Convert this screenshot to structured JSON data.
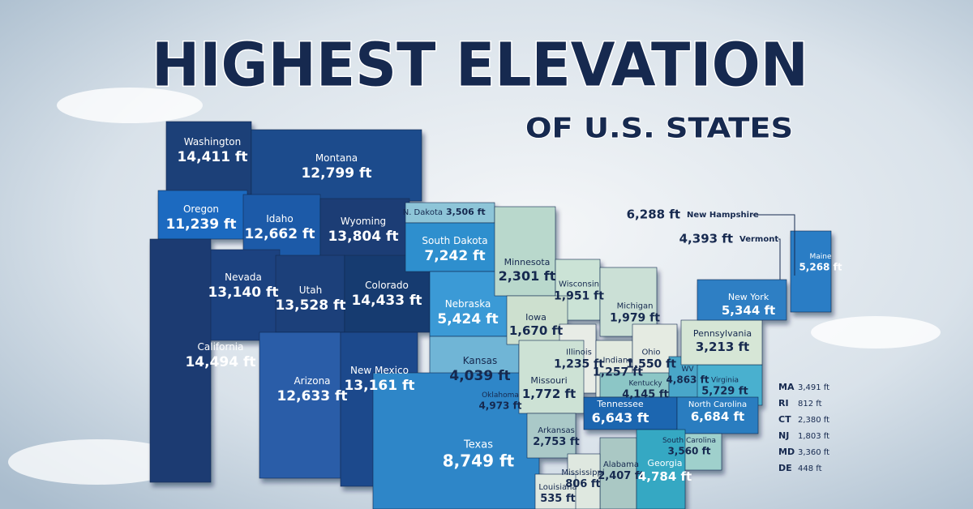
{
  "header": {
    "title": "HIGHEST ELEVATION",
    "subtitle": "OF U.S. STATES"
  },
  "states": [
    {
      "name": "Washington",
      "elevation": "14,411 ft"
    },
    {
      "name": "Oregon",
      "elevation": "11,239 ft"
    },
    {
      "name": "Montana",
      "elevation": "12,799 ft"
    },
    {
      "name": "Idaho",
      "elevation": "12,662 ft"
    },
    {
      "name": "Wyoming",
      "elevation": "13,804 ft"
    },
    {
      "name": "Nevada",
      "elevation": "13,140 ft"
    },
    {
      "name": "Utah",
      "elevation": "13,528 ft"
    },
    {
      "name": "Colorado",
      "elevation": "14,433 ft"
    },
    {
      "name": "California",
      "elevation": "14,494 ft"
    },
    {
      "name": "Arizona",
      "elevation": "12,633 ft"
    },
    {
      "name": "New Mexico",
      "elevation": "13,161 ft"
    },
    {
      "name": "N. Dakota",
      "elevation": "3,506 ft"
    },
    {
      "name": "South Dakota",
      "elevation": "7,242 ft"
    },
    {
      "name": "Nebraska",
      "elevation": "5,424 ft"
    },
    {
      "name": "Kansas",
      "elevation": "4,039 ft"
    },
    {
      "name": "Oklahoma",
      "elevation": "4,973 ft"
    },
    {
      "name": "Texas",
      "elevation": "8,749 ft"
    },
    {
      "name": "Minnesota",
      "elevation": "2,301 ft"
    },
    {
      "name": "Wisconsin",
      "elevation": "1,951 ft"
    },
    {
      "name": "Iowa",
      "elevation": "1,670 ft"
    },
    {
      "name": "Michigan",
      "elevation": "1,979 ft"
    },
    {
      "name": "Illinois",
      "elevation": "1,235 ft"
    },
    {
      "name": "Indiana",
      "elevation": "1,257 ft"
    },
    {
      "name": "Ohio",
      "elevation": "1,550 ft"
    },
    {
      "name": "Missouri",
      "elevation": "1,772 ft"
    },
    {
      "name": "Kentucky",
      "elevation": "4,145 ft"
    },
    {
      "name": "WV",
      "elevation": "4,863 ft"
    },
    {
      "name": "Virginia",
      "elevation": "5,729 ft"
    },
    {
      "name": "Pennsylvania",
      "elevation": "3,213 ft"
    },
    {
      "name": "New York",
      "elevation": "5,344 ft"
    },
    {
      "name": "Maine",
      "elevation": "5,268 ft"
    },
    {
      "name": "Tennessee",
      "elevation": "6,643 ft"
    },
    {
      "name": "North Carolina",
      "elevation": "6,684 ft"
    },
    {
      "name": "Arkansas",
      "elevation": "2,753 ft"
    },
    {
      "name": "South Carolina",
      "elevation": "3,560 ft"
    },
    {
      "name": "Alabama",
      "elevation": "2,407 ft"
    },
    {
      "name": "Georgia",
      "elevation": "4,784 ft"
    },
    {
      "name": "Mississippi",
      "elevation": "806 ft"
    },
    {
      "name": "Louisiana",
      "elevation": "535 ft"
    }
  ],
  "callouts": [
    {
      "name": "New Hampshire",
      "elevation": "6,288 ft"
    },
    {
      "name": "Vermont",
      "elevation": "4,393 ft"
    }
  ],
  "small_states": [
    {
      "name": "MA",
      "elevation": "3,491 ft"
    },
    {
      "name": "RI",
      "elevation": "812 ft"
    },
    {
      "name": "CT",
      "elevation": "2,380 ft"
    },
    {
      "name": "NJ",
      "elevation": "1,803 ft"
    },
    {
      "name": "MD",
      "elevation": "3,360 ft"
    },
    {
      "name": "DE",
      "elevation": "448 ft"
    }
  ]
}
